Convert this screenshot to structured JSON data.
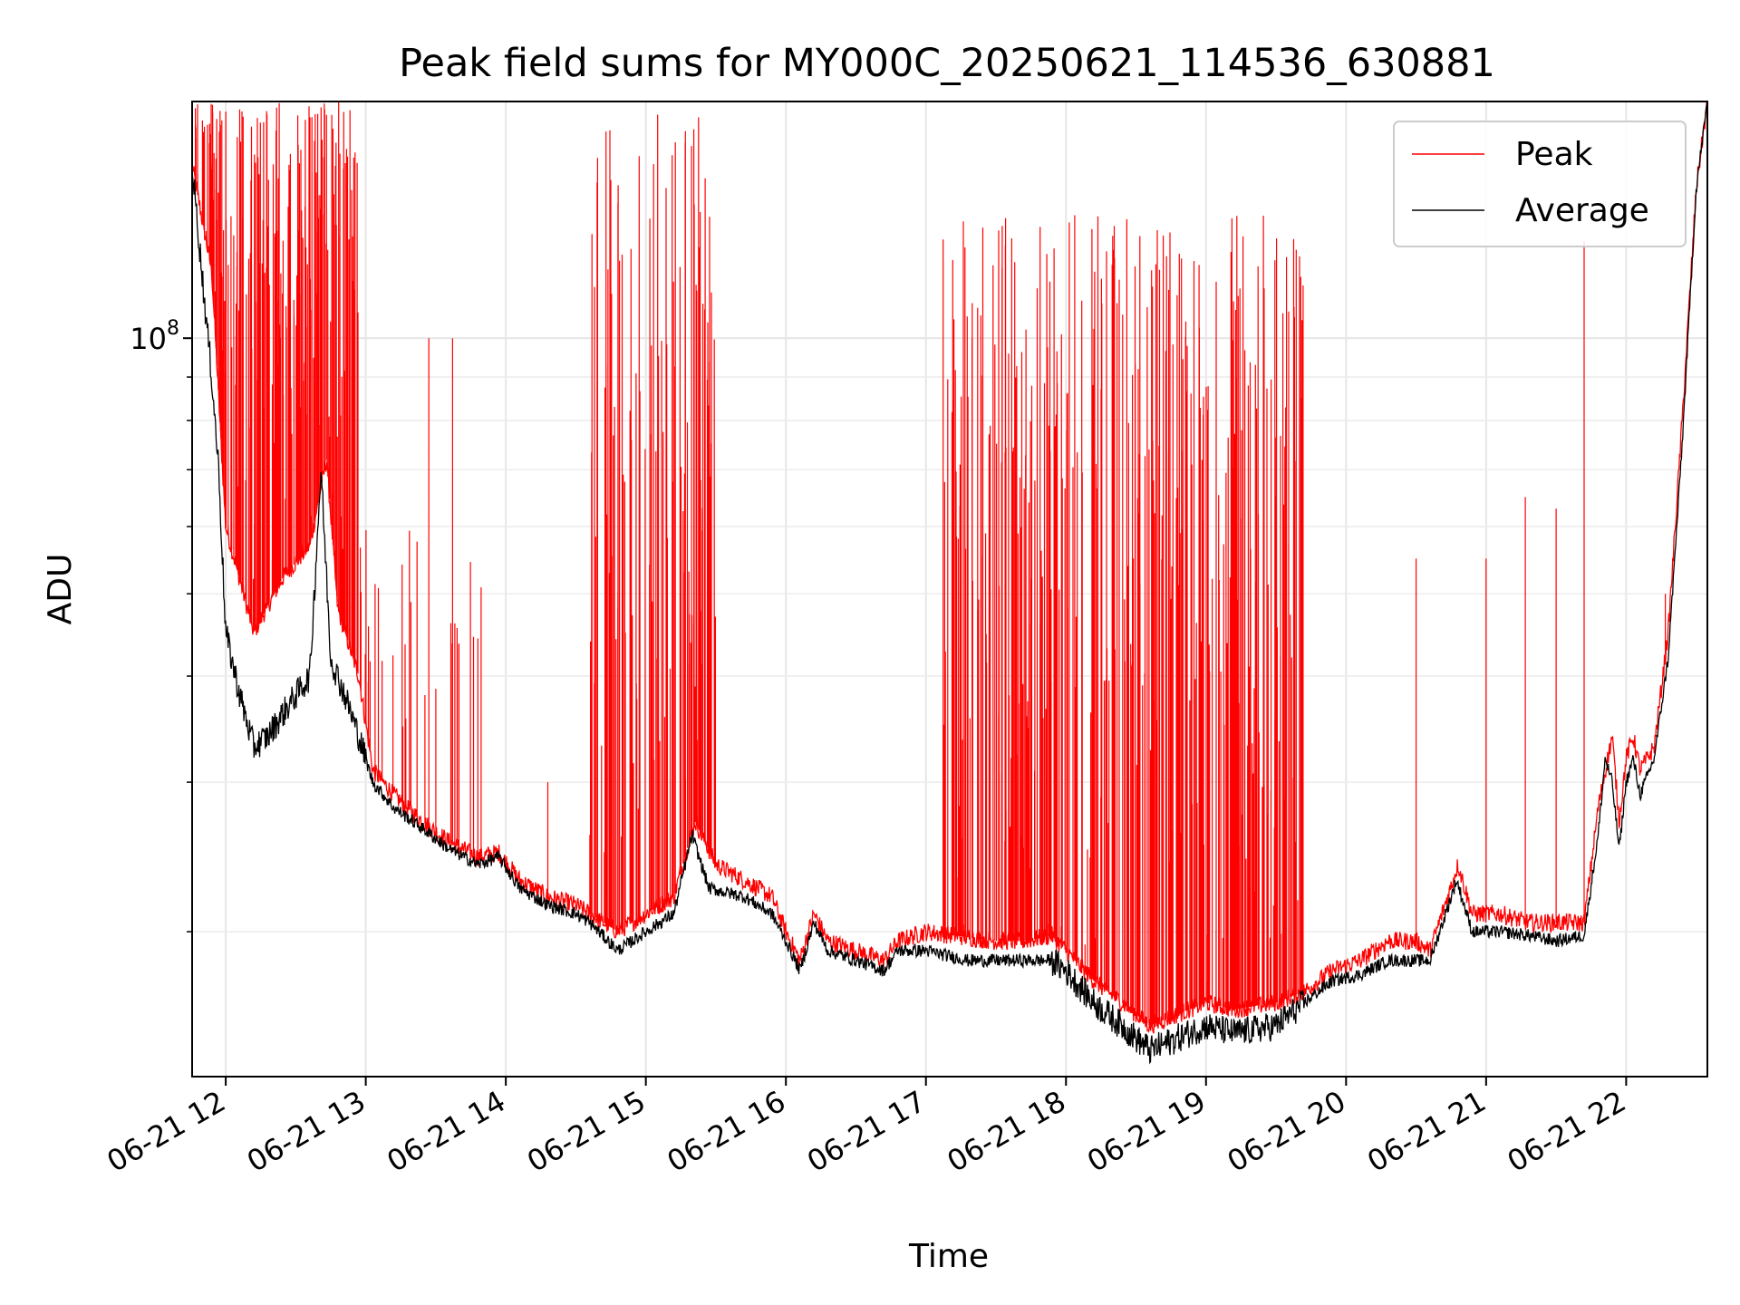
{
  "chart_data": {
    "type": "line",
    "title": "Peak field sums for MY000C_20250621_114536_630881",
    "xlabel": "Time",
    "ylabel": "ADU",
    "y_scale": "log",
    "y_tick_labels": [
      {
        "base": "10",
        "exp": "8",
        "value": 100000000
      }
    ],
    "ylim": [
      13500000,
      190000000
    ],
    "x_tick_labels": [
      "06-21 12",
      "06-21 13",
      "06-21 14",
      "06-21 15",
      "06-21 16",
      "06-21 17",
      "06-21 18",
      "06-21 19",
      "06-21 20",
      "06-21 21",
      "06-21 22"
    ],
    "xlim_hours": [
      11.76,
      22.58
    ],
    "grid": true,
    "legend_position": "top-right",
    "series": [
      {
        "name": "Peak",
        "color": "#ff0000",
        "points": [
          [
            11.76,
            160000000
          ],
          [
            11.9,
            120000000
          ],
          [
            12.0,
            60000000
          ],
          [
            12.2,
            45000000
          ],
          [
            12.4,
            52000000
          ],
          [
            12.6,
            57000000
          ],
          [
            12.72,
            72000000
          ],
          [
            12.8,
            48000000
          ],
          [
            12.95,
            40000000
          ],
          [
            13.05,
            31000000
          ],
          [
            13.2,
            29000000
          ],
          [
            13.4,
            27000000
          ],
          [
            13.6,
            25500000
          ],
          [
            13.8,
            24500000
          ],
          [
            13.95,
            24800000
          ],
          [
            14.1,
            23000000
          ],
          [
            14.3,
            22000000
          ],
          [
            14.5,
            21500000
          ],
          [
            14.6,
            21000000
          ],
          [
            14.8,
            20000000
          ],
          [
            15.0,
            21000000
          ],
          [
            15.2,
            22000000
          ],
          [
            15.35,
            27000000
          ],
          [
            15.5,
            24000000
          ],
          [
            15.7,
            23000000
          ],
          [
            15.9,
            22000000
          ],
          [
            16.0,
            20000000
          ],
          [
            16.1,
            18500000
          ],
          [
            16.2,
            21000000
          ],
          [
            16.3,
            19500000
          ],
          [
            16.5,
            19000000
          ],
          [
            16.7,
            18500000
          ],
          [
            16.8,
            19500000
          ],
          [
            17.0,
            20000000
          ],
          [
            17.2,
            19800000
          ],
          [
            17.5,
            19500000
          ],
          [
            17.7,
            19500000
          ],
          [
            17.9,
            19800000
          ],
          [
            18.0,
            19000000
          ],
          [
            18.2,
            17500000
          ],
          [
            18.4,
            16500000
          ],
          [
            18.6,
            15500000
          ],
          [
            18.8,
            16000000
          ],
          [
            19.0,
            16500000
          ],
          [
            19.2,
            16200000
          ],
          [
            19.5,
            16500000
          ],
          [
            19.7,
            17000000
          ],
          [
            19.9,
            18000000
          ],
          [
            20.1,
            18500000
          ],
          [
            20.3,
            19500000
          ],
          [
            20.5,
            19500000
          ],
          [
            20.6,
            19000000
          ],
          [
            20.8,
            24000000
          ],
          [
            20.9,
            21000000
          ],
          [
            21.1,
            21000000
          ],
          [
            21.3,
            20500000
          ],
          [
            21.5,
            20500000
          ],
          [
            21.7,
            20500000
          ],
          [
            21.8,
            28000000
          ],
          [
            21.9,
            34000000
          ],
          [
            21.95,
            27000000
          ],
          [
            22.0,
            32000000
          ],
          [
            22.05,
            34000000
          ],
          [
            22.1,
            31000000
          ],
          [
            22.2,
            33000000
          ],
          [
            22.3,
            45000000
          ],
          [
            22.4,
            80000000
          ],
          [
            22.5,
            150000000
          ],
          [
            22.58,
            190000000
          ]
        ],
        "spike_regions": [
          {
            "from": 11.78,
            "to": 12.95,
            "low": 40000000,
            "high": 190000000,
            "spikes": 260
          },
          {
            "from": 12.95,
            "to": 13.85,
            "low": 25000000,
            "high": 60000000,
            "spikes": 30
          },
          {
            "from": 14.6,
            "to": 15.5,
            "low": 21000000,
            "high": 190000000,
            "spikes": 130
          },
          {
            "from": 17.12,
            "to": 19.7,
            "low": 17000000,
            "high": 140000000,
            "spikes": 420
          }
        ],
        "isolated_spikes": [
          [
            13.45,
            100000000
          ],
          [
            13.62,
            100000000
          ],
          [
            14.3,
            30000000
          ],
          [
            14.6,
            26000000
          ],
          [
            20.5,
            55000000
          ],
          [
            21.0,
            55000000
          ],
          [
            21.28,
            65000000
          ],
          [
            21.5,
            63000000
          ],
          [
            21.7,
            130000000
          ],
          [
            22.28,
            50000000
          ]
        ]
      },
      {
        "name": "Average",
        "color": "#000000",
        "points": [
          [
            11.76,
            160000000
          ],
          [
            11.85,
            110000000
          ],
          [
            11.9,
            90000000
          ],
          [
            11.95,
            70000000
          ],
          [
            12.0,
            45000000
          ],
          [
            12.1,
            38000000
          ],
          [
            12.2,
            33000000
          ],
          [
            12.3,
            34000000
          ],
          [
            12.4,
            36000000
          ],
          [
            12.5,
            38000000
          ],
          [
            12.6,
            40000000
          ],
          [
            12.68,
            70000000
          ],
          [
            12.75,
            42000000
          ],
          [
            12.85,
            38000000
          ],
          [
            12.95,
            34000000
          ],
          [
            13.05,
            30000000
          ],
          [
            13.2,
            28000000
          ],
          [
            13.4,
            26500000
          ],
          [
            13.6,
            25000000
          ],
          [
            13.8,
            24000000
          ],
          [
            13.95,
            24500000
          ],
          [
            14.1,
            22500000
          ],
          [
            14.3,
            21500000
          ],
          [
            14.5,
            21000000
          ],
          [
            14.6,
            20500000
          ],
          [
            14.8,
            19000000
          ],
          [
            15.0,
            20000000
          ],
          [
            15.2,
            21000000
          ],
          [
            15.33,
            26000000
          ],
          [
            15.45,
            22500000
          ],
          [
            15.7,
            22000000
          ],
          [
            15.9,
            21000000
          ],
          [
            16.0,
            19500000
          ],
          [
            16.1,
            18000000
          ],
          [
            16.2,
            20500000
          ],
          [
            16.3,
            19000000
          ],
          [
            16.5,
            18500000
          ],
          [
            16.7,
            18000000
          ],
          [
            16.8,
            19000000
          ],
          [
            17.0,
            19000000
          ],
          [
            17.3,
            18500000
          ],
          [
            17.6,
            18500000
          ],
          [
            17.9,
            18500000
          ],
          [
            18.0,
            18000000
          ],
          [
            18.2,
            16500000
          ],
          [
            18.4,
            15500000
          ],
          [
            18.6,
            14500000
          ],
          [
            18.8,
            15000000
          ],
          [
            19.0,
            15500000
          ],
          [
            19.2,
            15200000
          ],
          [
            19.5,
            15500000
          ],
          [
            19.7,
            16500000
          ],
          [
            19.9,
            17500000
          ],
          [
            20.1,
            17800000
          ],
          [
            20.3,
            18500000
          ],
          [
            20.5,
            18500000
          ],
          [
            20.6,
            18500000
          ],
          [
            20.79,
            23000000
          ],
          [
            20.9,
            20000000
          ],
          [
            21.1,
            20000000
          ],
          [
            21.3,
            19800000
          ],
          [
            21.5,
            19500000
          ],
          [
            21.7,
            19800000
          ],
          [
            21.8,
            26000000
          ],
          [
            21.85,
            32000000
          ],
          [
            21.9,
            30000000
          ],
          [
            21.95,
            25000000
          ],
          [
            22.0,
            30000000
          ],
          [
            22.05,
            32000000
          ],
          [
            22.1,
            29000000
          ],
          [
            22.2,
            32000000
          ],
          [
            22.3,
            42000000
          ],
          [
            22.4,
            75000000
          ],
          [
            22.5,
            150000000
          ],
          [
            22.58,
            190000000
          ]
        ]
      }
    ]
  }
}
